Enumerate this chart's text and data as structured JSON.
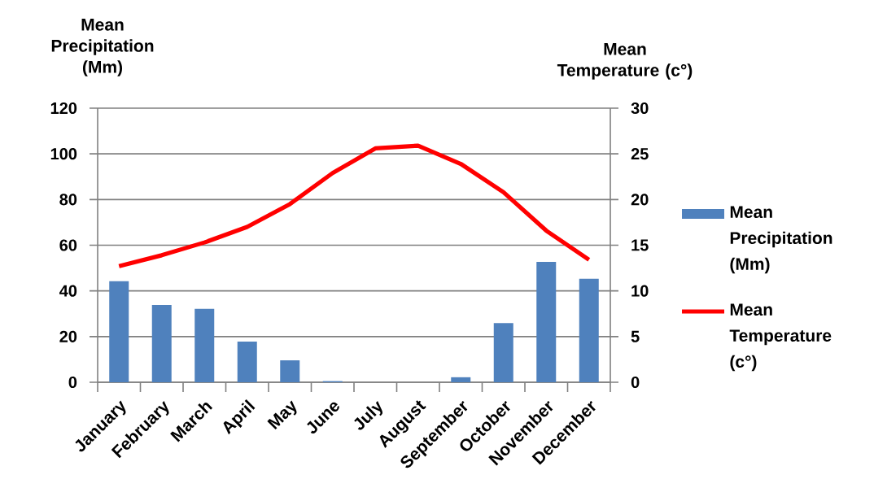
{
  "chart_data": {
    "type": "bar",
    "categories": [
      "January",
      "February",
      "March",
      "April",
      "May",
      "June",
      "July",
      "August",
      "September",
      "October",
      "November",
      "December"
    ],
    "ylabel": "Mean Precipitation (Mm)",
    "y2label": "Mean Temperature (c°)",
    "series": [
      {
        "name": "Mean Precipitation (Mm)",
        "color": "#4f81bd",
        "values": [
          44.2,
          33.8,
          32.1,
          17.8,
          9.6,
          0.5,
          0,
          0,
          2.2,
          25.9,
          52.7,
          45.3
        ]
      },
      {
        "name": "Mean Temperature (c°)",
        "type": "line",
        "axis": "y2",
        "color": "#ff0000",
        "values": [
          12.7,
          13.9,
          15.3,
          17.0,
          19.5,
          22.9,
          25.6,
          25.9,
          23.9,
          20.8,
          16.6,
          13.4
        ]
      }
    ],
    "ylim": [
      0,
      120
    ],
    "yticks": [
      0,
      20,
      40,
      60,
      80,
      100,
      120
    ],
    "y2lim": [
      0,
      30
    ],
    "y2ticks": [
      0,
      5,
      10,
      15,
      20,
      25,
      30
    ],
    "grid": "y",
    "legend": "right",
    "marker": "none"
  }
}
